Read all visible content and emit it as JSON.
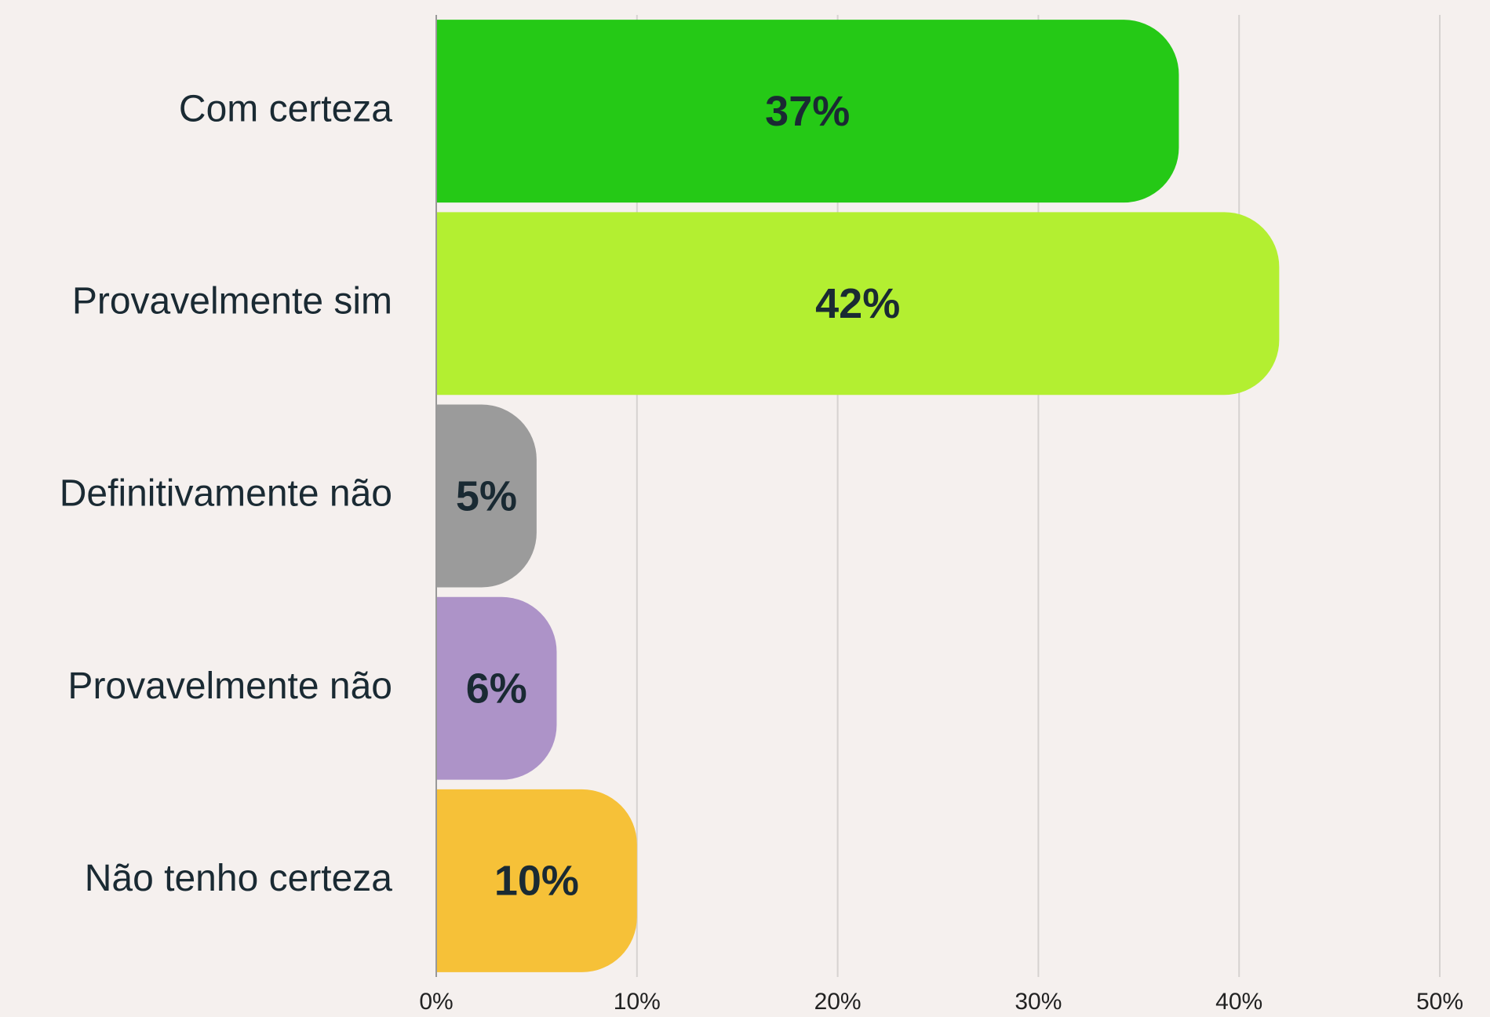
{
  "chart_data": {
    "type": "bar",
    "orientation": "horizontal",
    "categories": [
      "Com certeza",
      "Provavelmente sim",
      "Definitivamente não",
      "Provavelmente não",
      "Não tenho certeza"
    ],
    "values": [
      37,
      42,
      5,
      6,
      10
    ],
    "value_labels": [
      "37%",
      "42%",
      "5%",
      "6%",
      "10%"
    ],
    "colors": [
      "#25c916",
      "#b3ef31",
      "#9b9b9b",
      "#ad93c8",
      "#f6c138"
    ],
    "xlim": [
      0,
      50
    ],
    "xticks": [
      {
        "value": 0,
        "label": "0%"
      },
      {
        "value": 10,
        "label": "10%"
      },
      {
        "value": 20,
        "label": "20%"
      },
      {
        "value": 30,
        "label": "30%"
      },
      {
        "value": 40,
        "label": "40%"
      },
      {
        "value": 50,
        "label": "50%"
      }
    ],
    "grid": true
  }
}
